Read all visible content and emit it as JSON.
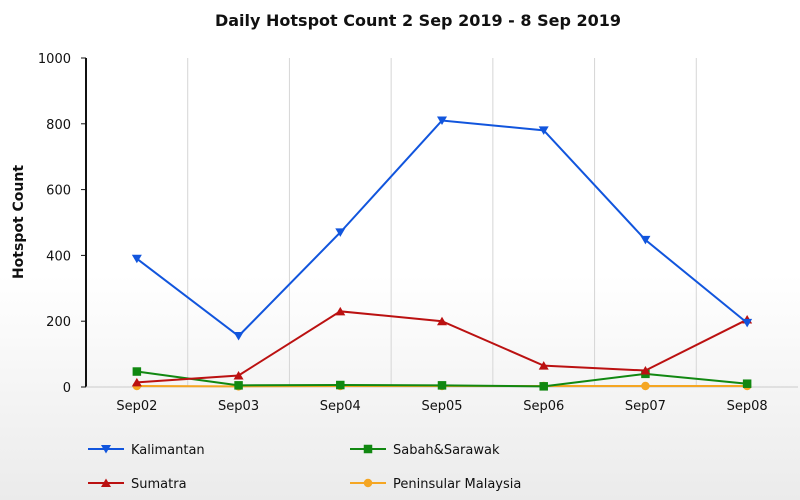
{
  "chart_data": {
    "type": "line",
    "title": "Daily Hotspot Count 2 Sep 2019 - 8 Sep 2019",
    "xlabel": "",
    "ylabel": "Hotspot Count",
    "categories": [
      "Sep02",
      "Sep03",
      "Sep04",
      "Sep05",
      "Sep06",
      "Sep07",
      "Sep08"
    ],
    "ylim": [
      0,
      1000
    ],
    "yticks": [
      0,
      200,
      400,
      600,
      800,
      1000
    ],
    "grid": "vertical",
    "legend_position": "bottom",
    "series": [
      {
        "name": "Kalimantan",
        "color": "#1155dd",
        "marker": "triangle-down",
        "values": [
          390,
          155,
          470,
          810,
          780,
          447,
          195
        ]
      },
      {
        "name": "Sumatra",
        "color": "#bb1111",
        "marker": "triangle-up",
        "values": [
          14,
          35,
          230,
          200,
          65,
          50,
          205
        ]
      },
      {
        "name": "Sabah&Sarawak",
        "color": "#118811",
        "marker": "square",
        "values": [
          47,
          5,
          6,
          5,
          2,
          40,
          10
        ]
      },
      {
        "name": "Peninsular Malaysia",
        "color": "#f5a623",
        "marker": "circle",
        "values": [
          3,
          2,
          3,
          3,
          3,
          3,
          3
        ]
      }
    ]
  }
}
